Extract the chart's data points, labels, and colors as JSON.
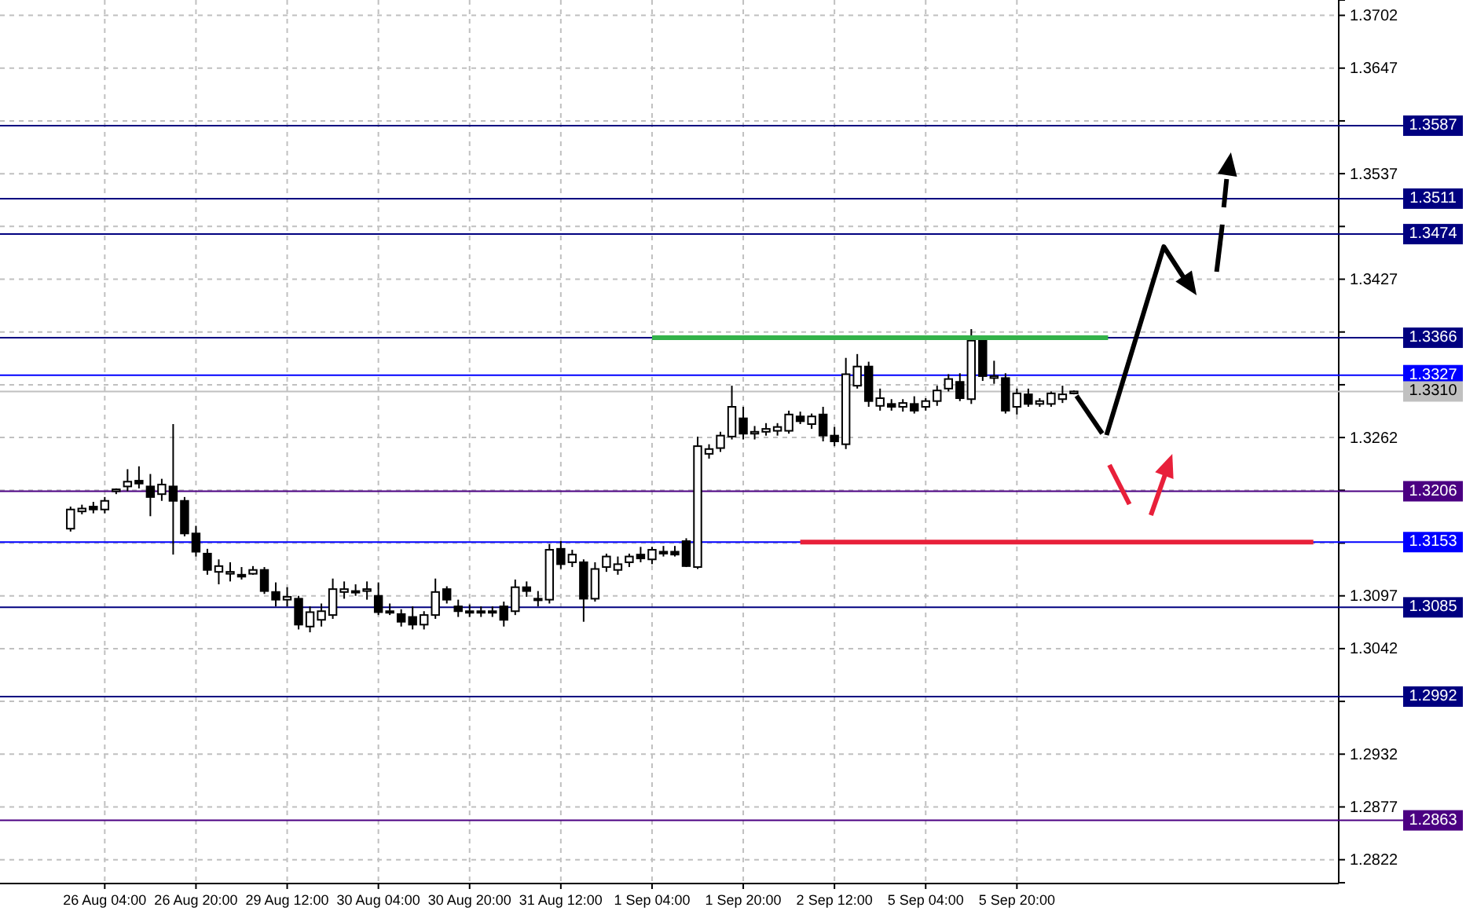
{
  "chart_data": {
    "type": "candlestick",
    "categories": [
      null,
      null,
      null,
      "26 Aug 04:00",
      null,
      null,
      null,
      null,
      null,
      null,
      null,
      "26 Aug 20:00",
      null,
      null,
      null,
      null,
      null,
      null,
      null,
      "29 Aug 12:00",
      null,
      null,
      null,
      null,
      null,
      null,
      null,
      "30 Aug 04:00",
      null,
      null,
      null,
      null,
      null,
      null,
      null,
      "30 Aug 20:00",
      null,
      null,
      null,
      null,
      null,
      null,
      null,
      "31 Aug 12:00",
      null,
      null,
      null,
      null,
      null,
      null,
      null,
      "1 Sep 04:00",
      null,
      null,
      null,
      null,
      null,
      null,
      null,
      "1 Sep 20:00",
      null,
      null,
      null,
      null,
      null,
      null,
      null,
      "2 Sep 12:00",
      null,
      null,
      null,
      null,
      null,
      null,
      null,
      "5 Sep 04:00",
      null,
      null,
      null,
      null,
      null,
      null,
      null,
      "5 Sep 20:00",
      null,
      null,
      null,
      null,
      null,
      null,
      null,
      null,
      null,
      null,
      null,
      null,
      null,
      null,
      null,
      null,
      null,
      null,
      null,
      null,
      null,
      null,
      null,
      null,
      null,
      null,
      null
    ],
    "series": [
      {
        "color": "#000000",
        "ohlc": [
          [
            1.3167,
            1.319,
            1.3164,
            1.3187
          ],
          [
            1.3185,
            1.3192,
            1.3182,
            1.3188
          ],
          [
            1.319,
            1.3195,
            1.3183,
            1.3187
          ],
          [
            1.3187,
            1.32,
            1.3183,
            1.3196
          ],
          [
            1.3206,
            1.3209,
            1.3203,
            1.3208
          ],
          [
            1.3211,
            1.3229,
            1.3206,
            1.3216
          ],
          [
            1.3217,
            1.3232,
            1.3209,
            1.3214
          ],
          [
            1.3211,
            1.3224,
            1.318,
            1.32
          ],
          [
            1.3203,
            1.3219,
            1.3196,
            1.3213
          ],
          [
            1.3211,
            1.3276,
            1.314,
            1.3196
          ],
          [
            1.3196,
            1.32,
            1.3159,
            1.3162
          ],
          [
            1.3162,
            1.317,
            1.3138,
            1.3143
          ],
          [
            1.3141,
            1.3146,
            1.3119,
            1.3124
          ],
          [
            1.3122,
            1.3135,
            1.3109,
            1.3128
          ],
          [
            1.312,
            1.3132,
            1.3112,
            1.3122
          ],
          [
            1.3119,
            1.3127,
            1.3114,
            1.3117
          ],
          [
            1.312,
            1.3128,
            1.3119,
            1.3124
          ],
          [
            1.3124,
            1.3127,
            1.3099,
            1.3102
          ],
          [
            1.3101,
            1.3111,
            1.3086,
            1.3093
          ],
          [
            1.3093,
            1.3106,
            1.3086,
            1.3096
          ],
          [
            1.3094,
            1.3097,
            1.3062,
            1.3067
          ],
          [
            1.3065,
            1.3086,
            1.3059,
            1.308
          ],
          [
            1.3072,
            1.3089,
            1.3065,
            1.3081
          ],
          [
            1.3077,
            1.3115,
            1.3073,
            1.3104
          ],
          [
            1.3101,
            1.3112,
            1.3094,
            1.3104
          ],
          [
            1.3101,
            1.3109,
            1.3097,
            1.3102
          ],
          [
            1.3102,
            1.3112,
            1.3093,
            1.3104
          ],
          [
            1.3097,
            1.3111,
            1.3077,
            1.308
          ],
          [
            1.308,
            1.3089,
            1.3077,
            1.3081
          ],
          [
            1.3078,
            1.3083,
            1.3065,
            1.307
          ],
          [
            1.3075,
            1.3086,
            1.3062,
            1.3067
          ],
          [
            1.3067,
            1.3081,
            1.3062,
            1.3077
          ],
          [
            1.3077,
            1.3115,
            1.3073,
            1.3101
          ],
          [
            1.3104,
            1.3107,
            1.3089,
            1.3093
          ],
          [
            1.3086,
            1.3093,
            1.3075,
            1.3081
          ],
          [
            1.3081,
            1.3088,
            1.3075,
            1.308
          ],
          [
            1.308,
            1.3086,
            1.3075,
            1.3081
          ],
          [
            1.308,
            1.3086,
            1.3075,
            1.3081
          ],
          [
            1.3086,
            1.3091,
            1.3065,
            1.3072
          ],
          [
            1.3081,
            1.3114,
            1.3077,
            1.3106
          ],
          [
            1.3106,
            1.3112,
            1.3096,
            1.3102
          ],
          [
            1.3093,
            1.3102,
            1.3086,
            1.3094
          ],
          [
            1.3093,
            1.3151,
            1.3089,
            1.3145
          ],
          [
            1.3146,
            1.3154,
            1.3125,
            1.313
          ],
          [
            1.3132,
            1.3145,
            1.3127,
            1.314
          ],
          [
            1.3132,
            1.3135,
            1.307,
            1.3094
          ],
          [
            1.3094,
            1.3132,
            1.3091,
            1.3125
          ],
          [
            1.3127,
            1.3141,
            1.3122,
            1.3138
          ],
          [
            1.3124,
            1.3138,
            1.3119,
            1.313
          ],
          [
            1.3132,
            1.3141,
            1.3127,
            1.3138
          ],
          [
            1.314,
            1.3148,
            1.3132,
            1.3136
          ],
          [
            1.3135,
            1.3148,
            1.313,
            1.3145
          ],
          [
            1.3143,
            1.3149,
            1.3138,
            1.3141
          ],
          [
            1.3143,
            1.3149,
            1.3138,
            1.314
          ],
          [
            1.3154,
            1.3157,
            1.3127,
            1.3128
          ],
          [
            1.3127,
            1.3263,
            1.3125,
            1.3253
          ],
          [
            1.3245,
            1.3255,
            1.324,
            1.325
          ],
          [
            1.3251,
            1.3268,
            1.3247,
            1.3264
          ],
          [
            1.3263,
            1.3316,
            1.326,
            1.3294
          ],
          [
            1.3282,
            1.3294,
            1.326,
            1.3266
          ],
          [
            1.3266,
            1.3274,
            1.326,
            1.3268
          ],
          [
            1.3268,
            1.3277,
            1.3264,
            1.3271
          ],
          [
            1.3269,
            1.3277,
            1.3264,
            1.3273
          ],
          [
            1.3269,
            1.329,
            1.3266,
            1.3286
          ],
          [
            1.3284,
            1.3289,
            1.3276,
            1.3279
          ],
          [
            1.3276,
            1.3287,
            1.3271,
            1.3284
          ],
          [
            1.3286,
            1.3294,
            1.3258,
            1.3264
          ],
          [
            1.3264,
            1.3273,
            1.3253,
            1.3258
          ],
          [
            1.3255,
            1.3345,
            1.325,
            1.3328
          ],
          [
            1.3316,
            1.3349,
            1.3313,
            1.3336
          ],
          [
            1.3336,
            1.3341,
            1.3294,
            1.33
          ],
          [
            1.3295,
            1.3313,
            1.329,
            1.3303
          ],
          [
            1.3297,
            1.3302,
            1.329,
            1.3294
          ],
          [
            1.3294,
            1.3302,
            1.3289,
            1.3298
          ],
          [
            1.3297,
            1.3305,
            1.3287,
            1.329
          ],
          [
            1.3294,
            1.3303,
            1.329,
            1.33
          ],
          [
            1.33,
            1.3316,
            1.3295,
            1.3311
          ],
          [
            1.3313,
            1.3328,
            1.331,
            1.3323
          ],
          [
            1.332,
            1.3329,
            1.33,
            1.3303
          ],
          [
            1.3302,
            1.3375,
            1.3297,
            1.3363
          ],
          [
            1.3363,
            1.3368,
            1.3321,
            1.3326
          ],
          [
            1.3324,
            1.3342,
            1.3318,
            1.3326
          ],
          [
            1.3324,
            1.3329,
            1.3287,
            1.329
          ],
          [
            1.3294,
            1.3313,
            1.3286,
            1.3308
          ],
          [
            1.3307,
            1.3313,
            1.3294,
            1.3297
          ],
          [
            1.3297,
            1.3303,
            1.3294,
            1.33
          ],
          [
            1.3297,
            1.331,
            1.3294,
            1.3308
          ],
          [
            1.3302,
            1.3316,
            1.3298,
            1.3307
          ],
          [
            1.3308,
            1.3311,
            1.3307,
            1.331
          ],
          null,
          null,
          null,
          null,
          null,
          null,
          null,
          null,
          null,
          null,
          null,
          null,
          null,
          null,
          null,
          null,
          null,
          null,
          null,
          null,
          null,
          null
        ]
      },
      {
        "type": "line",
        "color": "#33b24a",
        "values": [
          null,
          null,
          null,
          null,
          null,
          null,
          null,
          null,
          null,
          null,
          null,
          null,
          null,
          null,
          null,
          null,
          null,
          null,
          null,
          null,
          null,
          null,
          null,
          null,
          null,
          null,
          null,
          null,
          null,
          null,
          null,
          null,
          null,
          null,
          null,
          null,
          null,
          null,
          null,
          null,
          null,
          null,
          null,
          null,
          null,
          null,
          null,
          null,
          null,
          null,
          null,
          1.3366,
          1.3366,
          1.3366,
          1.3366,
          1.3366,
          1.3366,
          1.3366,
          1.3366,
          1.3366,
          1.3366,
          1.3366,
          1.3366,
          1.3366,
          1.3366,
          1.3366,
          1.3366,
          1.3366,
          1.3366,
          1.3366,
          1.3366,
          1.3366,
          1.3366,
          1.3366,
          1.3366,
          1.3366,
          1.3366,
          1.3366,
          1.3366,
          1.3366,
          1.3366,
          1.3366,
          1.3366,
          1.3366,
          1.3366,
          1.3366,
          1.3366,
          1.3366,
          1.3366,
          1.3366,
          1.3366,
          1.3366,
          null,
          null,
          null,
          null,
          null,
          null,
          null,
          null,
          null,
          null,
          null,
          null,
          null,
          null,
          null,
          null,
          null,
          null,
          null
        ]
      },
      {
        "type": "line",
        "color": "#e8203a",
        "values": [
          null,
          null,
          null,
          null,
          null,
          null,
          null,
          null,
          null,
          null,
          null,
          null,
          null,
          null,
          null,
          null,
          null,
          null,
          null,
          null,
          null,
          null,
          null,
          null,
          null,
          null,
          null,
          null,
          null,
          null,
          null,
          null,
          null,
          null,
          null,
          null,
          null,
          null,
          null,
          null,
          null,
          null,
          null,
          null,
          null,
          null,
          null,
          null,
          null,
          null,
          null,
          null,
          null,
          null,
          null,
          null,
          null,
          null,
          null,
          null,
          null,
          null,
          null,
          null,
          1.3153,
          1.3153,
          1.3153,
          1.3153,
          1.3153,
          1.3153,
          1.3153,
          1.3153,
          1.3153,
          1.3153,
          1.3153,
          1.3153,
          1.3153,
          1.3153,
          1.3153,
          1.3153,
          1.3153,
          1.3153,
          1.3153,
          1.3153,
          1.3153,
          1.3153,
          1.3153,
          1.3153,
          1.3153,
          1.3153,
          1.3153,
          1.3153,
          1.3153,
          1.3153,
          1.3153,
          1.3153,
          1.3153,
          1.3153,
          1.3153,
          1.3153,
          1.3153,
          1.3153,
          1.3153,
          1.3153,
          1.3153,
          1.3153,
          1.3153,
          1.3153,
          1.3153,
          1.3153,
          null
        ]
      }
    ],
    "ylim": [
      1.2798,
      1.3718
    ],
    "yticks": [
      1.3702,
      1.3647,
      {
        "value": 1.3592,
        "label": null
      },
      1.3537,
      {
        "value": 1.3482,
        "label": null
      },
      1.3427,
      {
        "value": 1.3372,
        "label": null
      },
      {
        "value": 1.3317,
        "label": null
      },
      1.3262,
      {
        "value": 1.3207,
        "label": null
      },
      {
        "value": 1.3152,
        "label": null
      },
      1.3097,
      1.3042,
      {
        "value": 1.2987,
        "label": null
      },
      1.2932,
      1.2877,
      1.2822
    ],
    "grid": true,
    "ref_lines": [
      {
        "axis": "y",
        "value": 1.3587,
        "label": "1.3587",
        "color": "#000080"
      },
      {
        "axis": "y",
        "value": 1.3511,
        "label": "1.3511",
        "color": "#000080"
      },
      {
        "axis": "y",
        "value": 1.3474,
        "label": "1.3474",
        "color": "#000080"
      },
      {
        "axis": "y",
        "value": 1.3366,
        "label": "1.3366",
        "color": "#000080"
      },
      {
        "axis": "y",
        "value": 1.3327,
        "label": "1.3327",
        "color": "#0000ff"
      },
      {
        "axis": "y",
        "value": 1.331,
        "label": "1.3310",
        "color": "#c0c0c0"
      },
      {
        "axis": "y",
        "value": 1.3206,
        "label": "1.3206",
        "color": "#4b0082"
      },
      {
        "axis": "y",
        "value": 1.3153,
        "label": "1.3153",
        "color": "#0000ff"
      },
      {
        "axis": "y",
        "value": 1.3085,
        "label": "1.3085",
        "color": "#000080"
      },
      {
        "axis": "y",
        "value": 1.2992,
        "label": "1.2992",
        "color": "#000080"
      },
      {
        "axis": "y",
        "value": 1.2863,
        "label": "1.2863",
        "color": "#4b0082"
      }
    ]
  }
}
